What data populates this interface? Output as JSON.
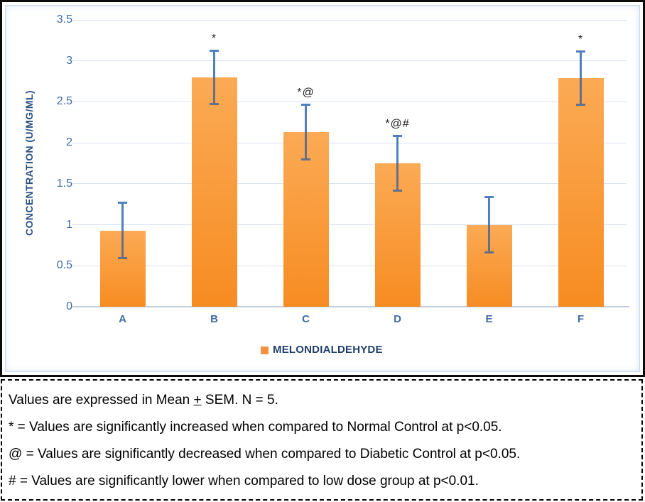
{
  "chart_data": {
    "type": "bar",
    "title": "",
    "categories": [
      "A",
      "B",
      "C",
      "D",
      "E",
      "F"
    ],
    "series": [
      {
        "name": "MELONDIALDEHYDE",
        "values": [
          0.93,
          2.8,
          2.13,
          1.75,
          1.0,
          2.79
        ],
        "errors": [
          0.34,
          0.33,
          0.34,
          0.34,
          0.34,
          0.33
        ]
      }
    ],
    "significance": [
      "",
      "*",
      "*@",
      "*@#",
      "",
      "*"
    ],
    "xlabel": "",
    "ylabel": "CONCENTRATION (U/MG/ML)",
    "ylim": [
      0,
      3.5
    ],
    "ytick_step": 0.5,
    "yticks": [
      "0",
      "0.5",
      "1",
      "1.5",
      "2",
      "2.5",
      "3",
      "3.5"
    ],
    "grid": true,
    "legend_position": "bottom-center",
    "bar_color_top": "#FBAA55",
    "bar_color_bottom": "#F78C22",
    "error_color": "#4E81BD",
    "error_color_inside": "#64708A",
    "gridline_color": "#D9E2F1",
    "axis_line_color": "#C2CFDF",
    "axis_text_color": "#3E6BA5",
    "axis_title_color": "#2A5183",
    "legend_text_color": "#1F3E6B",
    "legend_swatch_color": "#F6923F"
  },
  "notes": {
    "line1_prefix": "Values are expressed in Mean ",
    "line1_pm": "+",
    "line1_suffix": " SEM. N = 5.",
    "line2": "* = Values are significantly increased when compared to Normal Control at p<0.05.",
    "line3": "@ = Values are significantly decreased when compared to Diabetic Control at p<0.05.",
    "line4": "# = Values are significantly lower when compared to low dose group at p<0.01."
  }
}
